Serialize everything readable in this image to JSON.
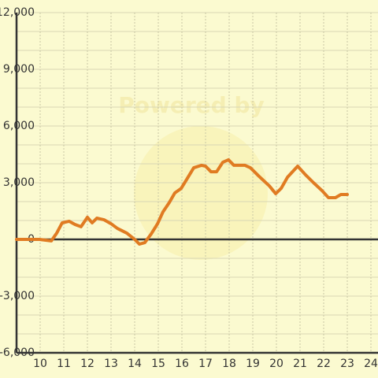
{
  "chart_data": {
    "type": "line",
    "watermark": "Powered by",
    "xlim": [
      9,
      24.3
    ],
    "xticks": [
      10,
      11,
      12,
      13,
      14,
      15,
      16,
      17,
      18,
      19,
      20,
      21,
      22,
      23,
      24
    ],
    "ylim": [
      -6300,
      12000
    ],
    "yticks": [
      {
        "value": -6000,
        "label": "-6,000"
      },
      {
        "value": -3000,
        "label": "-3,000"
      },
      0,
      {
        "value": 3000,
        "label": "3,000"
      },
      {
        "value": 6000,
        "label": "6,000"
      },
      {
        "value": 9000,
        "label": "9,000"
      },
      {
        "value": 12000,
        "label": "12,000"
      }
    ],
    "ygrid": [
      -6000,
      -5000,
      -4000,
      -3000,
      -2000,
      -1000,
      0,
      1000,
      2000,
      3000,
      4000,
      5000,
      6000,
      7000,
      8000,
      9000,
      10000,
      11000,
      12000
    ],
    "grid": true,
    "x": [
      9,
      9.97,
      10.47,
      10.7,
      10.93,
      11.23,
      11.47,
      11.73,
      12.0,
      12.2,
      12.4,
      12.7,
      13.0,
      13.27,
      13.67,
      14.0,
      14.2,
      14.43,
      14.7,
      14.97,
      15.2,
      15.47,
      15.7,
      15.97,
      16.2,
      16.5,
      16.83,
      17.0,
      17.23,
      17.47,
      17.73,
      17.97,
      18.2,
      18.67,
      18.9,
      19.27,
      19.7,
      19.97,
      20.2,
      20.47,
      20.9,
      21.23,
      21.57,
      21.93,
      22.2,
      22.5,
      22.73,
      23.0
    ],
    "series": [
      {
        "color": "#e07b22",
        "values": [
          0,
          0,
          -80,
          330,
          875,
          960,
          790,
          670,
          1170,
          875,
          1125,
          1040,
          830,
          580,
          330,
          0,
          -250,
          -170,
          290,
          830,
          1460,
          1960,
          2460,
          2700,
          3170,
          3790,
          3920,
          3875,
          3580,
          3580,
          4080,
          4210,
          3920,
          3920,
          3790,
          3330,
          2830,
          2420,
          2700,
          3290,
          3875,
          3420,
          3000,
          2580,
          2210,
          2210,
          2375,
          2375
        ]
      }
    ]
  }
}
